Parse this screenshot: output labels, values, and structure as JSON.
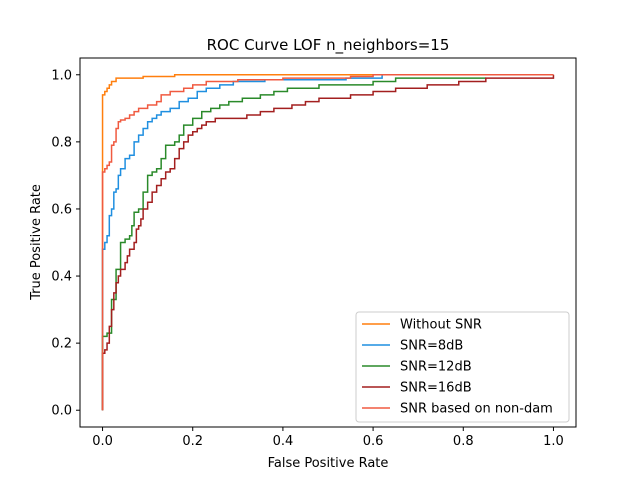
{
  "chart_data": {
    "type": "line",
    "title": "ROC Curve LOF n_neighbors=15",
    "xlabel": "False Positive Rate",
    "ylabel": "True Positive Rate",
    "xlim": [
      -0.05,
      1.05
    ],
    "ylim": [
      -0.05,
      1.05
    ],
    "xticks": [
      0.0,
      0.2,
      0.4,
      0.6,
      0.8,
      1.0
    ],
    "yticks": [
      0.0,
      0.2,
      0.4,
      0.6,
      0.8,
      1.0
    ],
    "xtick_labels": [
      "0.0",
      "0.2",
      "0.4",
      "0.6",
      "0.8",
      "1.0"
    ],
    "ytick_labels": [
      "0.0",
      "0.2",
      "0.4",
      "0.6",
      "0.8",
      "1.0"
    ],
    "grid": false,
    "legend_position": "lower-right",
    "series": [
      {
        "name": "Without SNR",
        "color": "#ff7f0e",
        "points": [
          [
            0,
            0
          ],
          [
            0,
            0.94
          ],
          [
            0.005,
            0.95
          ],
          [
            0.01,
            0.96
          ],
          [
            0.015,
            0.97
          ],
          [
            0.02,
            0.98
          ],
          [
            0.03,
            0.99
          ],
          [
            0.08,
            0.99
          ],
          [
            0.09,
            0.995
          ],
          [
            0.15,
            0.995
          ],
          [
            0.16,
            1.0
          ],
          [
            1.0,
            1.0
          ]
        ]
      },
      {
        "name": "SNR=8dB",
        "color": "#1f8fe0",
        "points": [
          [
            0,
            0
          ],
          [
            0,
            0.48
          ],
          [
            0.005,
            0.5
          ],
          [
            0.01,
            0.52
          ],
          [
            0.015,
            0.58
          ],
          [
            0.02,
            0.6
          ],
          [
            0.025,
            0.65
          ],
          [
            0.03,
            0.66
          ],
          [
            0.035,
            0.7
          ],
          [
            0.04,
            0.72
          ],
          [
            0.05,
            0.75
          ],
          [
            0.06,
            0.76
          ],
          [
            0.07,
            0.8
          ],
          [
            0.08,
            0.82
          ],
          [
            0.09,
            0.84
          ],
          [
            0.1,
            0.86
          ],
          [
            0.11,
            0.87
          ],
          [
            0.12,
            0.88
          ],
          [
            0.13,
            0.89
          ],
          [
            0.15,
            0.9
          ],
          [
            0.17,
            0.92
          ],
          [
            0.19,
            0.93
          ],
          [
            0.21,
            0.95
          ],
          [
            0.23,
            0.96
          ],
          [
            0.26,
            0.97
          ],
          [
            0.29,
            0.98
          ],
          [
            0.34,
            0.98
          ],
          [
            0.36,
            0.985
          ],
          [
            0.53,
            0.985
          ],
          [
            0.54,
            0.99
          ],
          [
            0.6,
            0.99
          ],
          [
            0.62,
            1.0
          ],
          [
            1.0,
            1.0
          ]
        ]
      },
      {
        "name": "SNR=12dB",
        "color": "#2a8a2a",
        "points": [
          [
            0,
            0
          ],
          [
            0,
            0.22
          ],
          [
            0.01,
            0.23
          ],
          [
            0.02,
            0.33
          ],
          [
            0.03,
            0.42
          ],
          [
            0.04,
            0.5
          ],
          [
            0.05,
            0.51
          ],
          [
            0.06,
            0.52
          ],
          [
            0.065,
            0.55
          ],
          [
            0.07,
            0.59
          ],
          [
            0.08,
            0.6
          ],
          [
            0.09,
            0.65
          ],
          [
            0.1,
            0.7
          ],
          [
            0.11,
            0.71
          ],
          [
            0.12,
            0.72
          ],
          [
            0.13,
            0.75
          ],
          [
            0.14,
            0.79
          ],
          [
            0.16,
            0.8
          ],
          [
            0.17,
            0.82
          ],
          [
            0.18,
            0.85
          ],
          [
            0.2,
            0.87
          ],
          [
            0.22,
            0.89
          ],
          [
            0.24,
            0.9
          ],
          [
            0.26,
            0.91
          ],
          [
            0.28,
            0.92
          ],
          [
            0.31,
            0.93
          ],
          [
            0.35,
            0.94
          ],
          [
            0.38,
            0.95
          ],
          [
            0.41,
            0.96
          ],
          [
            0.48,
            0.97
          ],
          [
            0.6,
            0.98
          ],
          [
            0.65,
            0.99
          ],
          [
            0.85,
            0.99
          ]
        ]
      },
      {
        "name": "SNR=16dB",
        "color": "#a31f1f",
        "points": [
          [
            0,
            0
          ],
          [
            0,
            0.17
          ],
          [
            0.005,
            0.18
          ],
          [
            0.01,
            0.2
          ],
          [
            0.015,
            0.25
          ],
          [
            0.02,
            0.3
          ],
          [
            0.025,
            0.35
          ],
          [
            0.03,
            0.38
          ],
          [
            0.035,
            0.4
          ],
          [
            0.04,
            0.42
          ],
          [
            0.05,
            0.44
          ],
          [
            0.055,
            0.46
          ],
          [
            0.06,
            0.48
          ],
          [
            0.07,
            0.5
          ],
          [
            0.075,
            0.54
          ],
          [
            0.08,
            0.55
          ],
          [
            0.085,
            0.57
          ],
          [
            0.09,
            0.6
          ],
          [
            0.1,
            0.62
          ],
          [
            0.11,
            0.65
          ],
          [
            0.12,
            0.67
          ],
          [
            0.13,
            0.69
          ],
          [
            0.14,
            0.71
          ],
          [
            0.15,
            0.72
          ],
          [
            0.16,
            0.75
          ],
          [
            0.17,
            0.78
          ],
          [
            0.18,
            0.8
          ],
          [
            0.19,
            0.82
          ],
          [
            0.2,
            0.83
          ],
          [
            0.21,
            0.84
          ],
          [
            0.22,
            0.85
          ],
          [
            0.23,
            0.86
          ],
          [
            0.25,
            0.87
          ],
          [
            0.32,
            0.88
          ],
          [
            0.35,
            0.89
          ],
          [
            0.38,
            0.9
          ],
          [
            0.42,
            0.91
          ],
          [
            0.45,
            0.92
          ],
          [
            0.48,
            0.93
          ],
          [
            0.55,
            0.94
          ],
          [
            0.6,
            0.95
          ],
          [
            0.65,
            0.96
          ],
          [
            0.72,
            0.97
          ],
          [
            0.79,
            0.98
          ],
          [
            0.85,
            0.99
          ],
          [
            0.98,
            0.99
          ],
          [
            1.0,
            1.0
          ]
        ]
      },
      {
        "name": "SNR based on non-dam",
        "color": "#f05a40",
        "points": [
          [
            0,
            0
          ],
          [
            0,
            0.71
          ],
          [
            0.005,
            0.72
          ],
          [
            0.01,
            0.73
          ],
          [
            0.015,
            0.74
          ],
          [
            0.02,
            0.79
          ],
          [
            0.025,
            0.8
          ],
          [
            0.03,
            0.84
          ],
          [
            0.035,
            0.86
          ],
          [
            0.04,
            0.865
          ],
          [
            0.05,
            0.87
          ],
          [
            0.06,
            0.88
          ],
          [
            0.07,
            0.89
          ],
          [
            0.08,
            0.9
          ],
          [
            0.1,
            0.91
          ],
          [
            0.12,
            0.92
          ],
          [
            0.13,
            0.94
          ],
          [
            0.15,
            0.95
          ],
          [
            0.18,
            0.96
          ],
          [
            0.2,
            0.97
          ],
          [
            0.23,
            0.98
          ],
          [
            0.3,
            0.985
          ],
          [
            0.4,
            0.99
          ],
          [
            0.55,
            0.995
          ],
          [
            0.6,
            1.0
          ],
          [
            1.0,
            1.0
          ]
        ]
      }
    ]
  }
}
